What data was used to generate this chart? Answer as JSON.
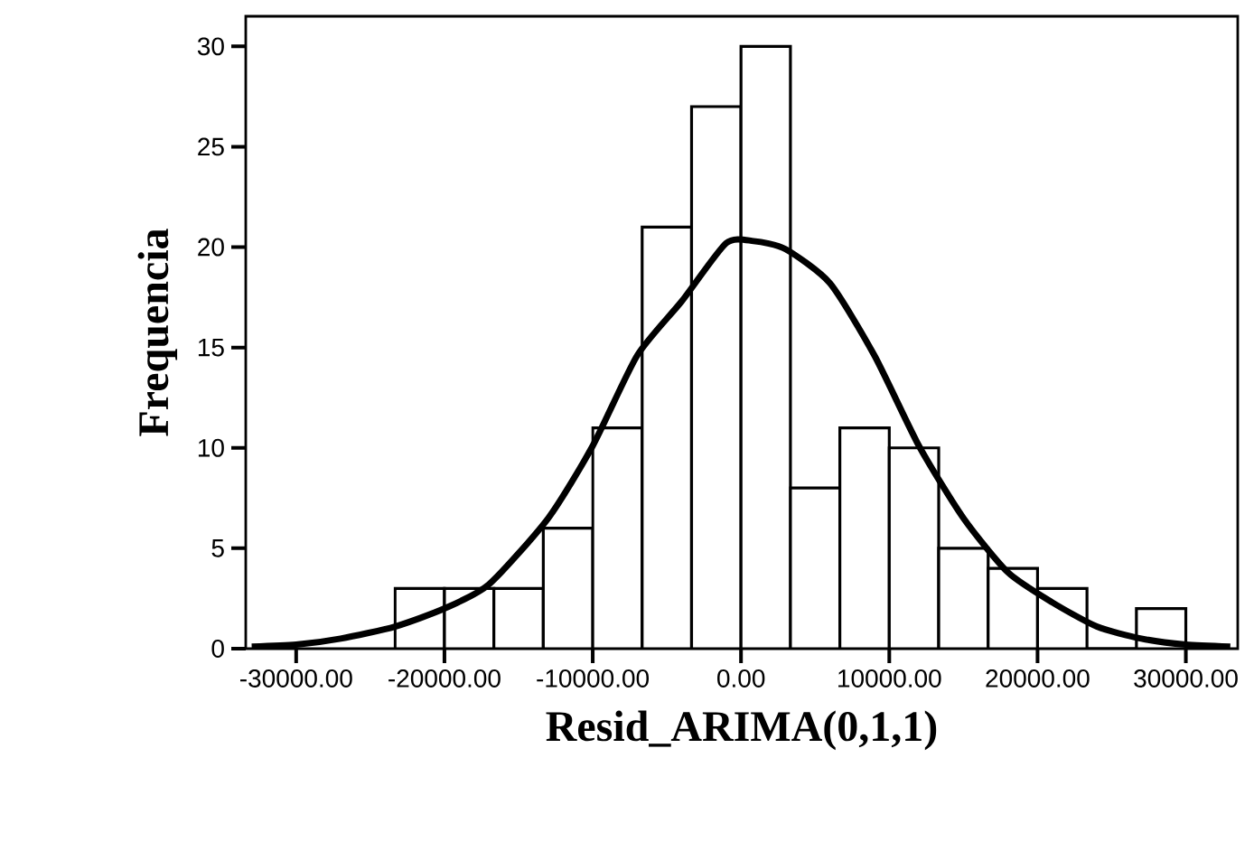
{
  "chart_data": {
    "type": "histogram",
    "xlabel": "Resid_ARIMA(0,1,1)",
    "ylabel": "Frequencia",
    "bins": [
      -23333.3,
      -20000,
      -16666.7,
      -13333.3,
      -10000,
      -6666.7,
      -3333.3,
      0,
      3333.3,
      6666.7,
      10000,
      13333.3,
      16666.7,
      20000,
      23333.3,
      26666.7,
      30000
    ],
    "values": [
      3,
      3,
      3,
      6,
      11,
      21,
      27,
      30,
      8,
      11,
      10,
      5,
      4,
      3,
      0,
      2
    ],
    "color": "#ffffff",
    "series": [
      {
        "type": "line",
        "color": "#000000",
        "x": [
          -33000,
          -30000,
          -27000,
          -23333,
          -20000,
          -17000,
          -13000,
          -10000,
          -7000,
          -4000,
          -1000,
          850,
          3000,
          6000,
          9000,
          12000,
          15000,
          18000,
          21000,
          24000,
          27000,
          30000,
          33000
        ],
        "values": [
          0.1,
          0.2,
          0.5,
          1.1,
          2.0,
          3.2,
          6.5,
          10.1,
          14.6,
          17.3,
          20.2,
          20.3,
          19.9,
          18.2,
          14.6,
          10.1,
          6.5,
          3.8,
          2.3,
          1.1,
          0.5,
          0.2,
          0.1
        ]
      }
    ],
    "xlim": [
      -33400,
      33500
    ],
    "ylim": [
      0,
      31.5
    ],
    "xticks": [
      {
        "value": -30000,
        "label": "-30000.00"
      },
      {
        "value": -20000,
        "label": "-20000.00"
      },
      {
        "value": -10000,
        "label": "-10000.00"
      },
      {
        "value": 0,
        "label": "0.00"
      },
      {
        "value": 10000,
        "label": "10000.00"
      },
      {
        "value": 20000,
        "label": "20000.00"
      },
      {
        "value": 30000,
        "label": "30000.00"
      }
    ],
    "yticks": [
      0,
      5,
      10,
      15,
      20,
      25,
      30
    ],
    "grid": false
  }
}
